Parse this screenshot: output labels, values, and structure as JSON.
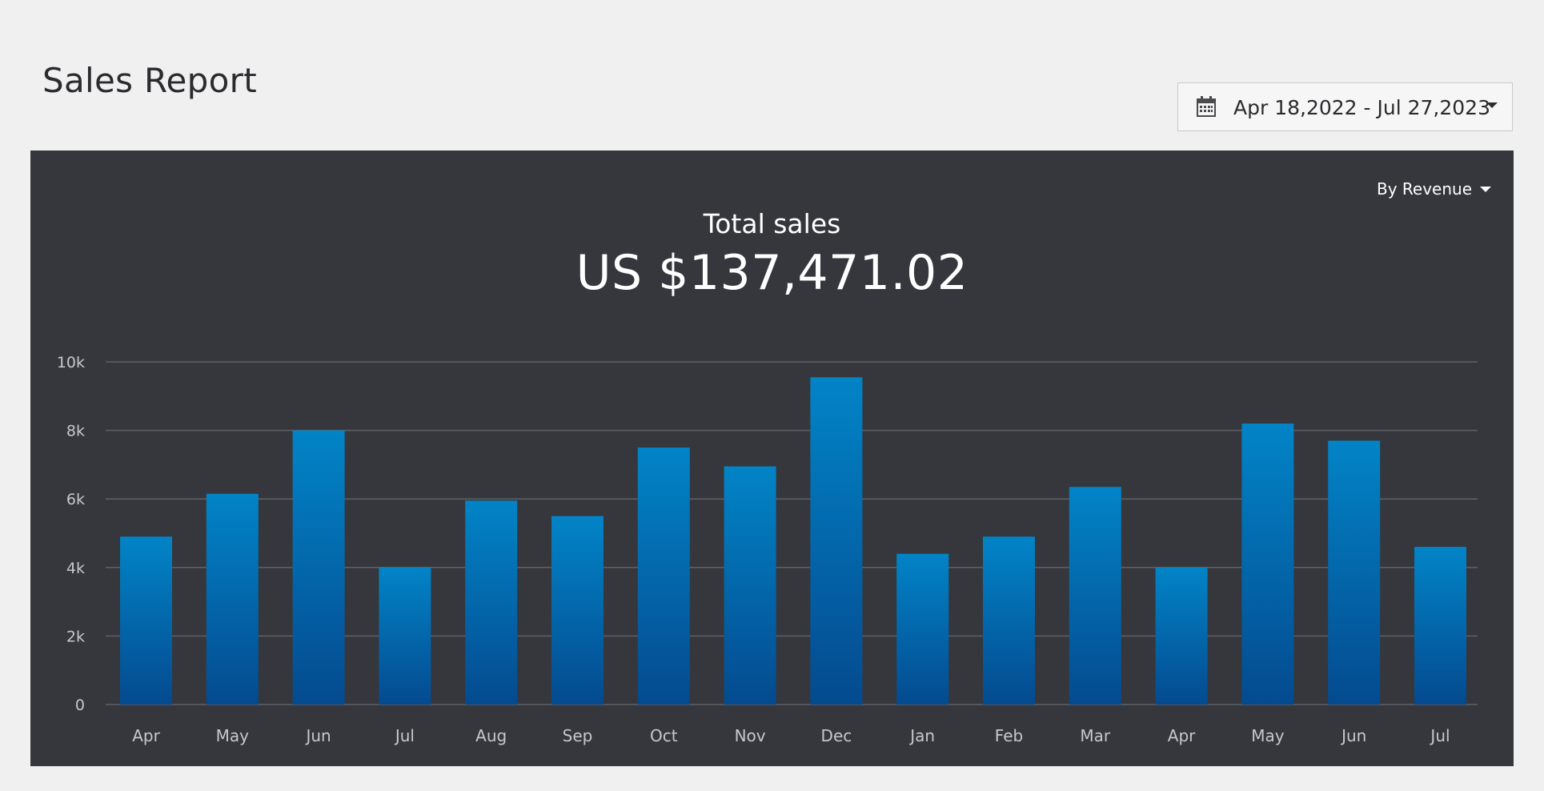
{
  "page": {
    "title": "Sales Report"
  },
  "date_range": {
    "label": "Apr 18,2022 - Jul 27,2023",
    "icon": "calendar-icon"
  },
  "panel": {
    "metric_selector": "By Revenue",
    "total_label": "Total sales",
    "total_value": "US $137,471.02"
  },
  "colors": {
    "bar_top": "#0284c7",
    "bar_bottom": "#044a8f",
    "panel_bg": "#35373c",
    "grid": "#5f6166",
    "tick_text": "#c8c8cc"
  },
  "chart_data": {
    "type": "bar",
    "categories": [
      "Apr",
      "May",
      "Jun",
      "Jul",
      "Aug",
      "Sep",
      "Oct",
      "Nov",
      "Dec",
      "Jan",
      "Feb",
      "Mar",
      "Apr",
      "May",
      "Jun",
      "Jul"
    ],
    "values": [
      4900,
      6150,
      8000,
      4000,
      5950,
      5500,
      7500,
      6950,
      9550,
      4400,
      4900,
      6350,
      4000,
      8200,
      7700,
      4600
    ],
    "y_ticks": [
      "0",
      "2k",
      "4k",
      "6k",
      "8k",
      "10k"
    ],
    "y_tick_values": [
      0,
      2000,
      4000,
      6000,
      8000,
      10000
    ],
    "ylim": [
      0,
      10000
    ],
    "title": "",
    "xlabel": "",
    "ylabel": "",
    "grid": true,
    "legend": "none"
  }
}
